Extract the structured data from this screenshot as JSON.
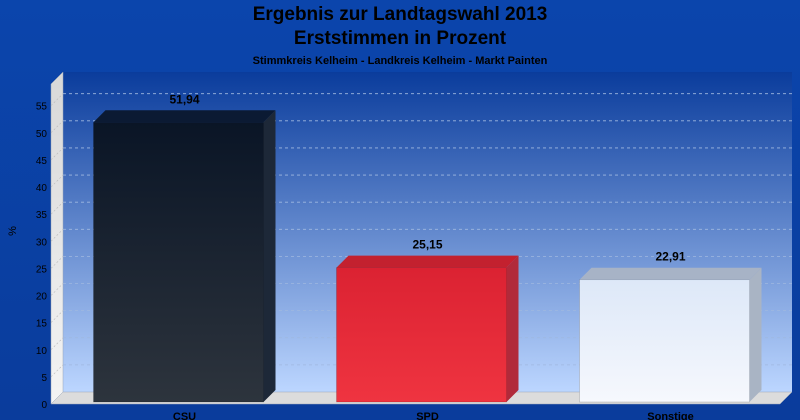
{
  "title": "Ergebnis zur Landtagswahl 2013",
  "subtitle": "Erststimmen in Prozent",
  "caption": "Stimmkreis Kelheim - Landkreis Kelheim - Markt Painten",
  "chart_data": {
    "type": "bar",
    "title": "Ergebnis zur Landtagswahl 2013",
    "subtitle": "Erststimmen in Prozent",
    "ylabel": "%",
    "xlabel": "",
    "ylim": [
      0,
      59
    ],
    "yticks": [
      0,
      5,
      10,
      15,
      20,
      25,
      30,
      35,
      40,
      45,
      50,
      55
    ],
    "grid": true,
    "categories": [
      "CSU",
      "SPD",
      "Sonstige"
    ],
    "values": [
      51.94,
      25.15,
      22.91
    ],
    "value_labels": [
      "51,94",
      "25,15",
      "22,91"
    ],
    "colors": [
      "#1b2331",
      "#e3283a",
      "#e8eef8"
    ]
  }
}
